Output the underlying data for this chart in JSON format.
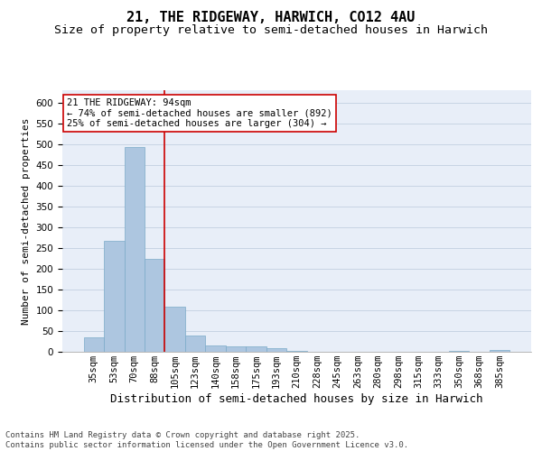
{
  "title1": "21, THE RIDGEWAY, HARWICH, CO12 4AU",
  "title2": "Size of property relative to semi-detached houses in Harwich",
  "xlabel": "Distribution of semi-detached houses by size in Harwich",
  "ylabel": "Number of semi-detached properties",
  "categories": [
    "35sqm",
    "53sqm",
    "70sqm",
    "88sqm",
    "105sqm",
    "123sqm",
    "140sqm",
    "158sqm",
    "175sqm",
    "193sqm",
    "210sqm",
    "228sqm",
    "245sqm",
    "263sqm",
    "280sqm",
    "298sqm",
    "315sqm",
    "333sqm",
    "350sqm",
    "368sqm",
    "385sqm"
  ],
  "values": [
    35,
    268,
    493,
    224,
    108,
    40,
    15,
    13,
    14,
    8,
    2,
    1,
    1,
    0,
    0,
    0,
    0,
    0,
    3,
    0,
    4
  ],
  "bar_color": "#adc6e0",
  "bar_edge_color": "#7aaac8",
  "grid_color": "#c8d4e4",
  "vline_x": 3.5,
  "vline_color": "#cc0000",
  "annotation_text": "21 THE RIDGEWAY: 94sqm\n← 74% of semi-detached houses are smaller (892)\n25% of semi-detached houses are larger (304) →",
  "annotation_box_facecolor": "#ffffff",
  "annotation_box_edgecolor": "#cc0000",
  "ylim": [
    0,
    630
  ],
  "yticks": [
    0,
    50,
    100,
    150,
    200,
    250,
    300,
    350,
    400,
    450,
    500,
    550,
    600
  ],
  "footer": "Contains HM Land Registry data © Crown copyright and database right 2025.\nContains public sector information licensed under the Open Government Licence v3.0.",
  "bg_color": "#e8eef8",
  "fig_bg": "#ffffff",
  "title1_fontsize": 11,
  "title2_fontsize": 9.5,
  "xlabel_fontsize": 9,
  "ylabel_fontsize": 8,
  "tick_fontsize": 7.5,
  "footer_fontsize": 6.5,
  "annotation_fontsize": 7.5
}
